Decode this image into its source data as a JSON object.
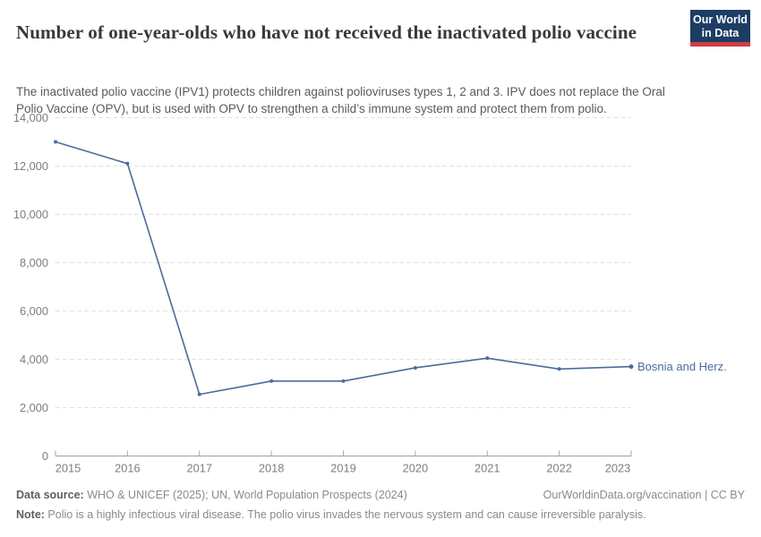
{
  "header": {
    "title": "Number of one-year-olds who have not received the inactivated polio vaccine",
    "subtitle": "The inactivated polio vaccine (IPV1) protects children against polioviruses types 1, 2 and 3. IPV does not replace the Oral Polio Vaccine (OPV), but is used with OPV to strengthen a child’s immune system and protect them from polio.",
    "logo": {
      "line1": "Our World",
      "line2": "in Data",
      "bg_color": "#1d3d63",
      "accent_color": "#d13d44"
    }
  },
  "chart_data": {
    "type": "line",
    "title": "Number of one-year-olds who have not received the inactivated polio vaccine",
    "x": [
      2015,
      2016,
      2017,
      2018,
      2019,
      2020,
      2021,
      2022,
      2023
    ],
    "series": [
      {
        "name": "Bosnia and Herz.",
        "color": "#4c6a9c",
        "values": [
          13000,
          12100,
          2550,
          3100,
          3100,
          3650,
          4050,
          3600,
          3700
        ]
      }
    ],
    "xlabel": "",
    "ylabel": "",
    "ylim": [
      0,
      14000
    ],
    "yticks": [
      0,
      2000,
      4000,
      6000,
      8000,
      10000,
      12000,
      14000
    ],
    "grid": "horizontal-dashed",
    "legend": "end-of-line-label"
  },
  "footer": {
    "datasource_label": "Data source:",
    "datasource_text": " WHO & UNICEF (2025); UN, World Population Prospects (2024)",
    "link": "OurWorldinData.org/vaccination | CC BY",
    "note_label": "Note:",
    "note_text": " Polio is a highly infectious viral disease. The polio virus invades the nervous system and can cause irreversible paralysis."
  }
}
